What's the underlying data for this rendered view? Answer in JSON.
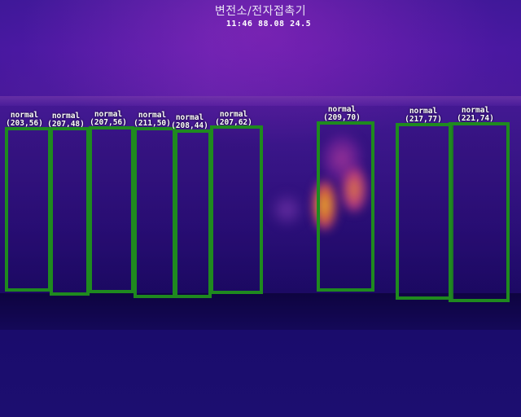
{
  "header": {
    "title": "변전소/전자접촉기",
    "readout": "11:46 88.08 24.5"
  },
  "detections": [
    {
      "status": "normal",
      "coords": "(203,56)"
    },
    {
      "status": "normal",
      "coords": "(207,48)"
    },
    {
      "status": "normal",
      "coords": "(207,56)"
    },
    {
      "status": "normal",
      "coords": "(211,50)"
    },
    {
      "status": "normal",
      "coords": "(208,44)"
    },
    {
      "status": "normal",
      "coords": "(207,62)"
    },
    {
      "status": "normal",
      "coords": "(209,70)"
    },
    {
      "status": "normal",
      "coords": "(217,77)"
    },
    {
      "status": "normal",
      "coords": "(221,74)"
    }
  ],
  "colors": {
    "box_outline": "#1f8a1f",
    "label_text": "#ffffff",
    "hotspot": "#ffe040"
  }
}
